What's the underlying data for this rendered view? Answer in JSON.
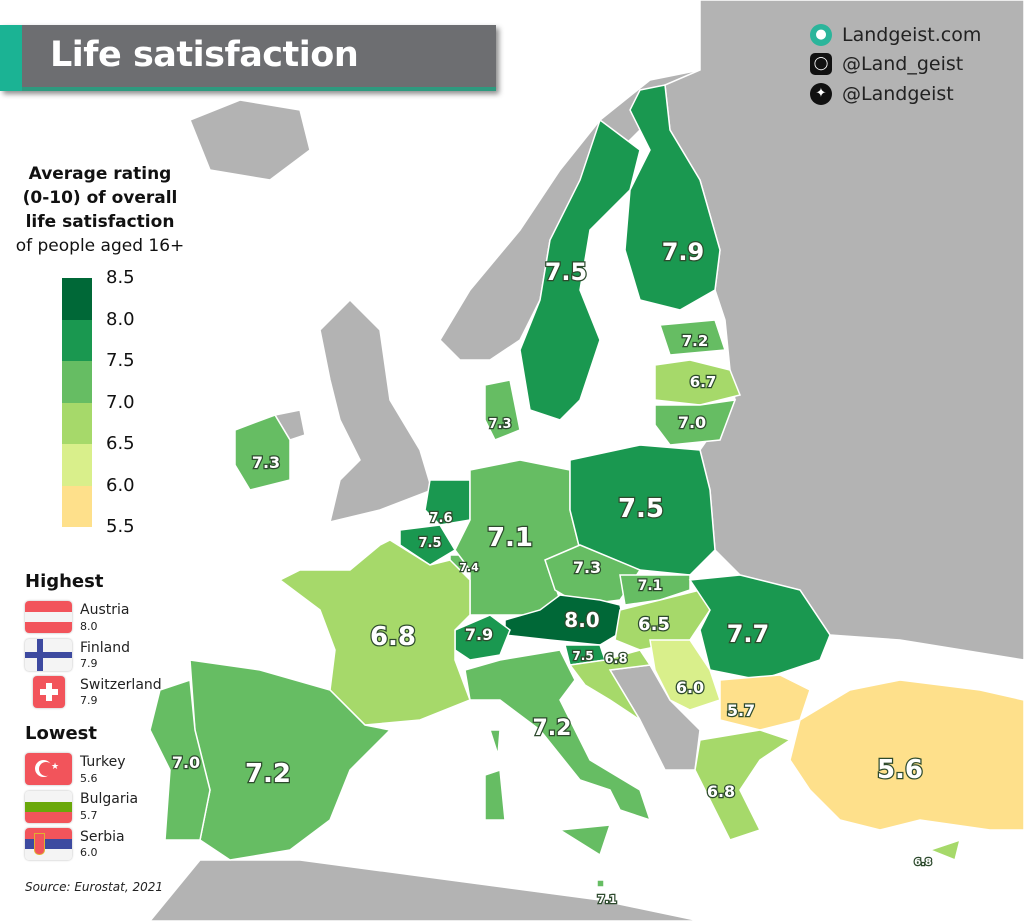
{
  "title": "Life satisfaction",
  "social": {
    "website": "Landgeist.com",
    "instagram": "@Land_geist",
    "twitter": "@Landgeist"
  },
  "legend": {
    "title_bold": [
      "Average rating",
      "(0-10) of overall",
      "life satisfaction"
    ],
    "subtitle": "of people aged 16+",
    "ticks": [
      "8.5",
      "8.0",
      "7.5",
      "7.0",
      "6.5",
      "6.0",
      "5.5"
    ],
    "colors": [
      "#006837",
      "#1a9850",
      "#66bd63",
      "#a6d96a",
      "#d9ef8b",
      "#fee08b"
    ]
  },
  "highest": {
    "heading": "Highest",
    "items": [
      {
        "name": "Austria",
        "value": "8.0"
      },
      {
        "name": "Finland",
        "value": "7.9"
      },
      {
        "name": "Switzerland",
        "value": "7.9"
      }
    ]
  },
  "lowest": {
    "heading": "Lowest",
    "items": [
      {
        "name": "Turkey",
        "value": "5.6"
      },
      {
        "name": "Bulgaria",
        "value": "5.7"
      },
      {
        "name": "Serbia",
        "value": "6.0"
      }
    ]
  },
  "source": "Source: Eurostat, 2021",
  "no_data_color": "#b3b3b3",
  "regions": [
    {
      "id": "sweden",
      "value": "7.5"
    },
    {
      "id": "finland",
      "value": "7.9"
    },
    {
      "id": "estonia",
      "value": "7.2"
    },
    {
      "id": "latvia",
      "value": "6.7"
    },
    {
      "id": "lithuania",
      "value": "7.0"
    },
    {
      "id": "denmark",
      "value": "7.3"
    },
    {
      "id": "ireland",
      "value": "7.3"
    },
    {
      "id": "netherlands",
      "value": "7.6"
    },
    {
      "id": "belgium",
      "value": "7.5"
    },
    {
      "id": "luxembourg",
      "value": "7.4"
    },
    {
      "id": "germany",
      "value": "7.1"
    },
    {
      "id": "poland",
      "value": "7.5"
    },
    {
      "id": "czechia",
      "value": "7.3"
    },
    {
      "id": "slovakia",
      "value": "7.1"
    },
    {
      "id": "austria",
      "value": "8.0"
    },
    {
      "id": "switzerland",
      "value": "7.9"
    },
    {
      "id": "slovenia",
      "value": "7.5"
    },
    {
      "id": "croatia",
      "value": "6.8"
    },
    {
      "id": "hungary",
      "value": "6.5"
    },
    {
      "id": "romania",
      "value": "7.7"
    },
    {
      "id": "serbia",
      "value": "6.0"
    },
    {
      "id": "bulgaria",
      "value": "5.7"
    },
    {
      "id": "greece",
      "value": "6.8"
    },
    {
      "id": "turkey",
      "value": "5.6"
    },
    {
      "id": "cyprus",
      "value": "6.8"
    },
    {
      "id": "malta",
      "value": "7.1"
    },
    {
      "id": "italy",
      "value": "7.2"
    },
    {
      "id": "france",
      "value": "6.8"
    },
    {
      "id": "spain",
      "value": "7.2"
    },
    {
      "id": "portugal",
      "value": "7.0"
    }
  ]
}
